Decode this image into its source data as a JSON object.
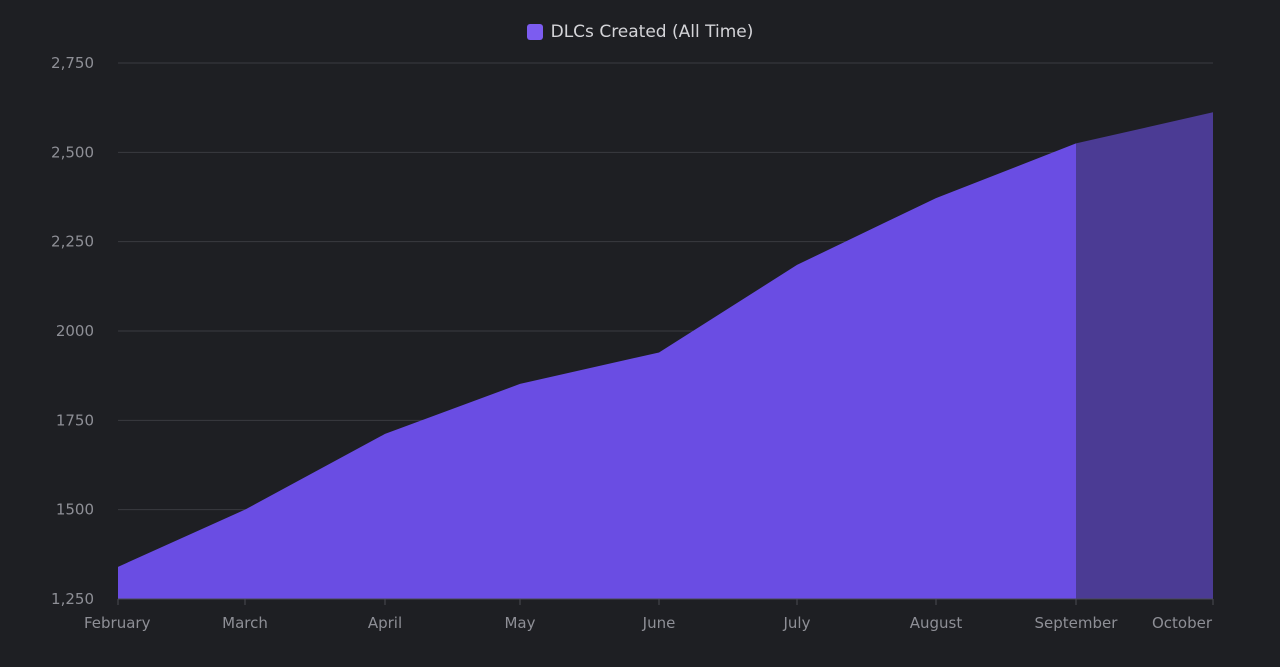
{
  "chart_data": {
    "type": "area",
    "title": "",
    "xlabel": "",
    "ylabel": "",
    "categories": [
      "February",
      "March",
      "April",
      "May",
      "June",
      "July",
      "August",
      "September",
      "October"
    ],
    "series": [
      {
        "name": "DLCs Created (All Time)",
        "values": [
          1340,
          1500,
          1712,
          1852,
          1940,
          2185,
          2372,
          2525,
          2612
        ]
      }
    ],
    "projected_from_index": 7,
    "y_ticks": [
      1250,
      1500,
      1750,
      2000,
      2250,
      2500,
      2750
    ],
    "y_tick_labels": [
      "1,250",
      "1500",
      "1750",
      "2000",
      "2,250",
      "2,500",
      "2,750"
    ],
    "ylim": [
      1250,
      2750
    ],
    "grid": true,
    "legend_position": "top-center"
  },
  "colors": {
    "background": "#1e1f23",
    "area_fill": "#6a4de3",
    "projected_fill": "#4b3b94",
    "legend_swatch": "#7c5cf0",
    "grid": "#3a3b40",
    "axis_text": "#8e8f96"
  }
}
